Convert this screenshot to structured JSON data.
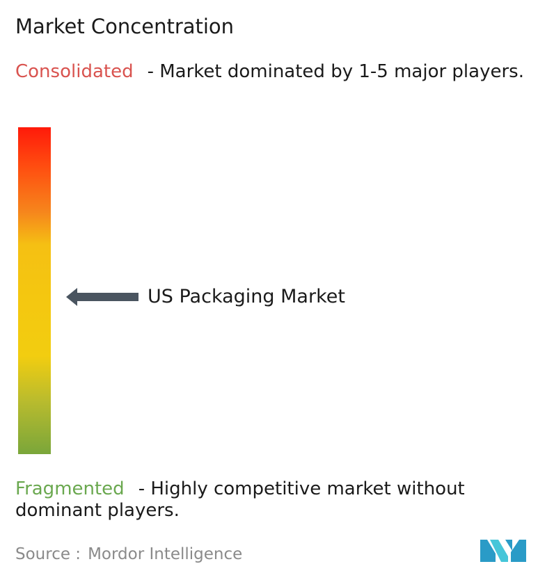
{
  "title": "Market Concentration",
  "consolidated": {
    "label": "Consolidated",
    "description": "- Market dominated by 1-5 major players.",
    "color": "#d9534f"
  },
  "fragmented": {
    "label": "Fragmented",
    "description": "- Highly competitive market without dominant players.",
    "color": "#6aa84f"
  },
  "scale": {
    "gradient_colors": [
      "#ff1a0a",
      "#f6861c",
      "#f4c710",
      "#7aa63a"
    ],
    "marker_label": "US Packaging Market",
    "marker_level_from_top": 0.52,
    "marker_color": "#4a5560"
  },
  "source": {
    "prefix": "Source :",
    "name": "Mordor Intelligence"
  },
  "logo": {
    "icon": "mordor-intelligence-logo",
    "colors": [
      "#2a9bc7",
      "#46c6d9"
    ]
  }
}
